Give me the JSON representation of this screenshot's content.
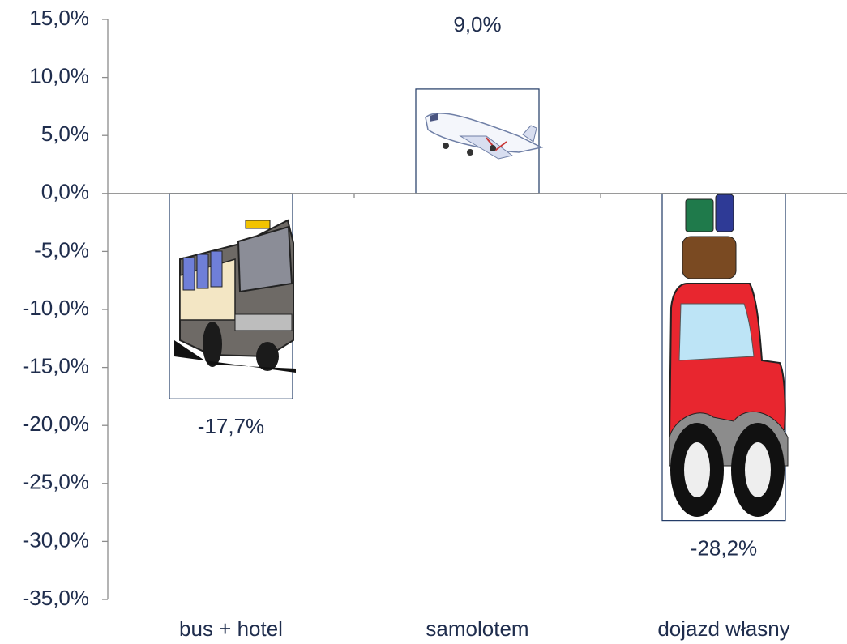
{
  "chart_data": {
    "type": "bar",
    "categories": [
      "bus + hotel",
      "samolotem",
      "dojazd własny"
    ],
    "values": [
      -17.7,
      9.0,
      -28.2
    ],
    "value_labels": [
      "-17,7%",
      "9,0%",
      "-28,2%"
    ],
    "ylim": [
      -35,
      15
    ],
    "yticks": [
      {
        "value": -35,
        "label": "-35,0%"
      },
      {
        "value": -30,
        "label": "-30,0%"
      },
      {
        "value": -25,
        "label": "-25,0%"
      },
      {
        "value": -20,
        "label": "-20,0%"
      },
      {
        "value": -15,
        "label": "-15,0%"
      },
      {
        "value": -10,
        "label": "-10,0%"
      },
      {
        "value": -5,
        "label": "-5,0%"
      },
      {
        "value": 0,
        "label": "0,0%"
      },
      {
        "value": 5,
        "label": "5,0%"
      },
      {
        "value": 10,
        "label": "10,0%"
      },
      {
        "value": 15,
        "label": "15,0%"
      }
    ],
    "grid": false
  }
}
